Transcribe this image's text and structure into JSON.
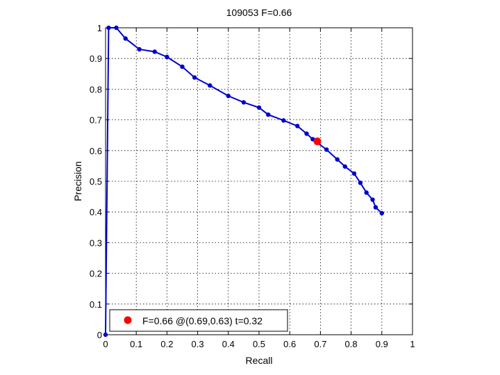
{
  "chart_data": {
    "type": "line",
    "title": "109053 F=0.66",
    "xlabel": "Recall",
    "ylabel": "Precision",
    "xlim": [
      0,
      1
    ],
    "ylim": [
      0,
      1
    ],
    "grid": true,
    "x_ticks": [
      "0",
      "0.1",
      "0.2",
      "0.3",
      "0.4",
      "0.5",
      "0.6",
      "0.7",
      "0.8",
      "0.9",
      "1"
    ],
    "y_ticks": [
      "0",
      "0.1",
      "0.2",
      "0.3",
      "0.4",
      "0.5",
      "0.6",
      "0.7",
      "0.8",
      "0.9",
      "1"
    ],
    "line_color": "#0000cc",
    "marker_color": "#0000cc",
    "best_point_color": "#ff0000",
    "series": [
      {
        "points": [
          [
            0.0,
            0.0
          ],
          [
            0.01,
            1.0
          ],
          [
            0.035,
            1.0
          ],
          [
            0.065,
            0.965
          ],
          [
            0.11,
            0.93
          ],
          [
            0.16,
            0.922
          ],
          [
            0.2,
            0.905
          ],
          [
            0.25,
            0.873
          ],
          [
            0.29,
            0.838
          ],
          [
            0.34,
            0.812
          ],
          [
            0.4,
            0.778
          ],
          [
            0.45,
            0.757
          ],
          [
            0.5,
            0.74
          ],
          [
            0.53,
            0.717
          ],
          [
            0.58,
            0.698
          ],
          [
            0.625,
            0.68
          ],
          [
            0.655,
            0.655
          ],
          [
            0.675,
            0.637
          ],
          [
            0.72,
            0.603
          ],
          [
            0.755,
            0.571
          ],
          [
            0.78,
            0.548
          ],
          [
            0.81,
            0.525
          ],
          [
            0.83,
            0.495
          ],
          [
            0.85,
            0.463
          ],
          [
            0.87,
            0.44
          ],
          [
            0.88,
            0.415
          ],
          [
            0.9,
            0.396
          ]
        ]
      }
    ],
    "best_point": {
      "x": 0.69,
      "y": 0.63
    },
    "legend": {
      "label": "F=0.66 @(0.69,0.63) t=0.32",
      "placement": "bottom-left"
    }
  }
}
